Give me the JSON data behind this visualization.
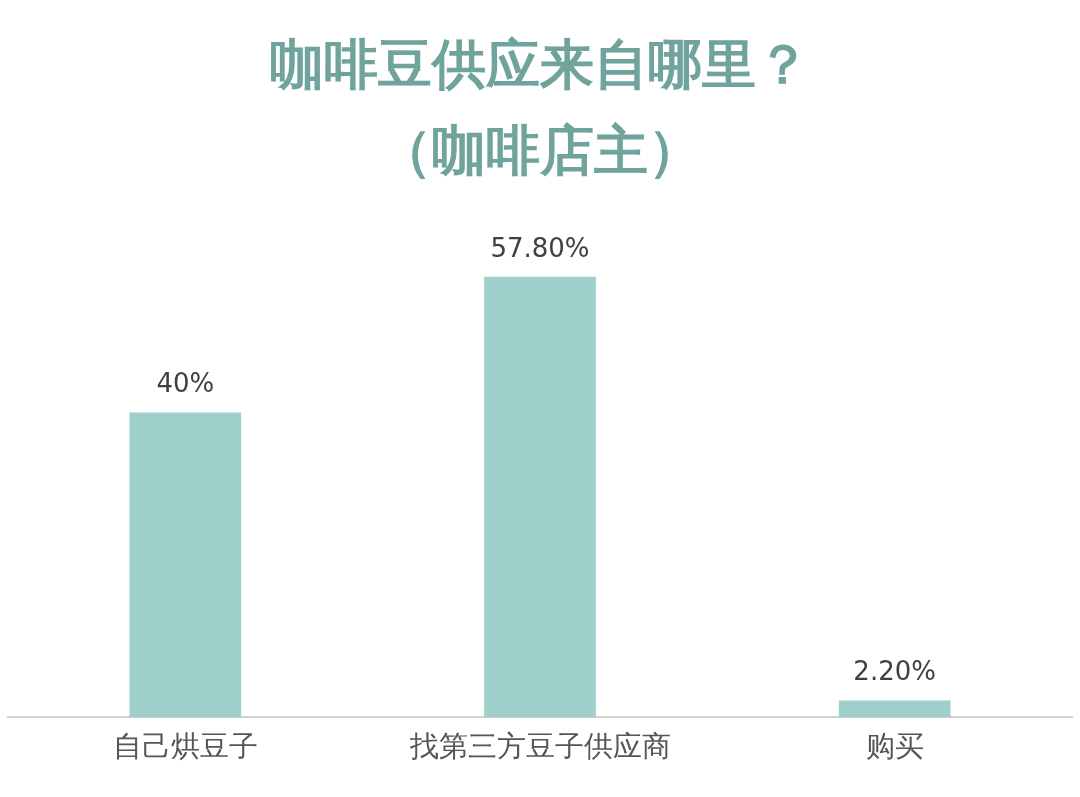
{
  "chart_data": {
    "type": "bar",
    "title": "咖啡豆供应来自哪里？",
    "subtitle": "（咖啡店主）",
    "categories": [
      "自己烘豆子",
      "找第三方豆子供应商",
      "购买"
    ],
    "values": [
      40,
      57.8,
      2.2
    ],
    "value_labels": [
      "40%",
      "57.80%",
      "2.20%"
    ],
    "color": "#9ecfcb",
    "grid": false,
    "legend": false,
    "tick_labels": "x"
  }
}
